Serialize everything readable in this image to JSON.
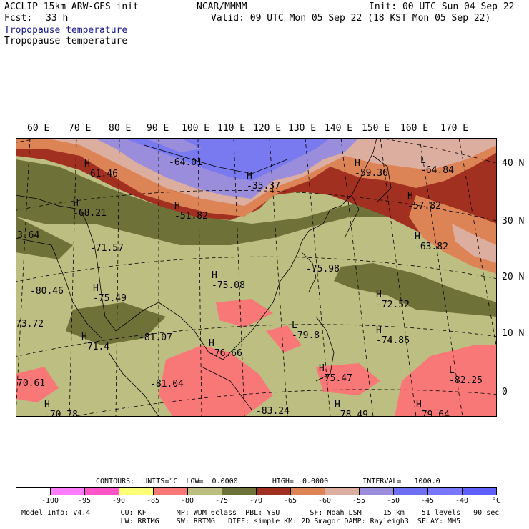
{
  "header": {
    "title_left": "ACCLIP 15km ARW-GFS init",
    "center": "NCAR/MMMM",
    "init": "Init: 00 UTC Sun 04 Sep 22",
    "fcst_label": "Fcst:",
    "fcst_value": "33 h",
    "valid": "Valid: 09 UTC Mon 05 Sep 22 (18 KST Mon 05 Sep 22)",
    "field_line1": "Tropopause temperature",
    "field_line2": "Tropopause temperature"
  },
  "map": {
    "lon_labels": [
      "60 E",
      "70 E",
      "80 E",
      "90 E",
      "100 E",
      "110 E",
      "120 E",
      "130 E",
      "140 E",
      "150 E",
      "160 E",
      "170 E"
    ],
    "lat_labels": [
      "40 N",
      "30 N",
      "20 N",
      "10 N",
      "0"
    ],
    "annotations": [
      {
        "kind": "H",
        "value": "-61.46"
      },
      {
        "kind": "",
        "value": "-64.01"
      },
      {
        "kind": "H",
        "value": "-35.37"
      },
      {
        "kind": "H",
        "value": "-59.36"
      },
      {
        "kind": "L",
        "value": "-64.84"
      },
      {
        "kind": "H",
        "value": "-68.21"
      },
      {
        "kind": "H",
        "value": "-51.82"
      },
      {
        "kind": "H",
        "value": "-57.82"
      },
      {
        "kind": "",
        "value": "3.64"
      },
      {
        "kind": "",
        "value": "-71.57"
      },
      {
        "kind": "H",
        "value": "-63.82"
      },
      {
        "kind": "",
        "value": "-80.46"
      },
      {
        "kind": "H",
        "value": "-75.49"
      },
      {
        "kind": "H",
        "value": "-75.08"
      },
      {
        "kind": "",
        "value": "-75.98"
      },
      {
        "kind": "H",
        "value": "-72.52"
      },
      {
        "kind": "",
        "value": "73.72"
      },
      {
        "kind": "H",
        "value": "-71.4"
      },
      {
        "kind": "",
        "value": "-81.07"
      },
      {
        "kind": "L",
        "value": "-79.8"
      },
      {
        "kind": "H",
        "value": "-74.86"
      },
      {
        "kind": "H",
        "value": "-76.66"
      },
      {
        "kind": "H",
        "value": "-75.47"
      },
      {
        "kind": "L",
        "value": "-82.25"
      },
      {
        "kind": "",
        "value": "70.61"
      },
      {
        "kind": "",
        "value": "-81.04"
      },
      {
        "kind": "H",
        "value": "-70.78"
      },
      {
        "kind": "",
        "value": "-83.24"
      },
      {
        "kind": "H",
        "value": "-78.49"
      },
      {
        "kind": "H",
        "value": "-79.64"
      }
    ],
    "colors": {
      "lt_-80": "#f87878",
      "-80_-75": "#bcbe82",
      "-75_-70": "#6f7238",
      "-70_-65": "#a23021",
      "-65_-60": "#dc8456",
      "-60_-55": "#dcaea0",
      "-55_-50": "#9a8edc",
      "-50_-45": "#6e6ef2"
    }
  },
  "legend": {
    "contours_line": "CONTOURS:  UNITS=°C  LOW=  0.0000        HIGH=  0.0000        INTERVAL=   1000.0",
    "swatch_colors": [
      "#ffffff",
      "#ff7cff",
      "#ff55c8",
      "#ffff78",
      "#f87878",
      "#bcbe82",
      "#6f7238",
      "#a23021",
      "#dc8456",
      "#dcaea0",
      "#9a8edc",
      "#6e6ef2",
      "#7878ff",
      "#6060ff"
    ],
    "tick_labels": [
      "-100",
      "-95",
      "-90",
      "-85",
      "-80",
      "-75",
      "-70",
      "-65",
      "-60",
      "-55",
      "-50",
      "-45",
      "-40",
      "°C"
    ]
  },
  "footer": {
    "line1": "Model Info: V4.4       CU: KF       MP: WDM 6class  PBL: YSU       SF: Noah LSM     15 km    51 levels   90 sec",
    "line2": "                       LW: RRTMG    SW: RRTMG   DIFF: simple KM: 2D Smagor DAMP: Rayleigh3  SFLAY: MM5"
  }
}
